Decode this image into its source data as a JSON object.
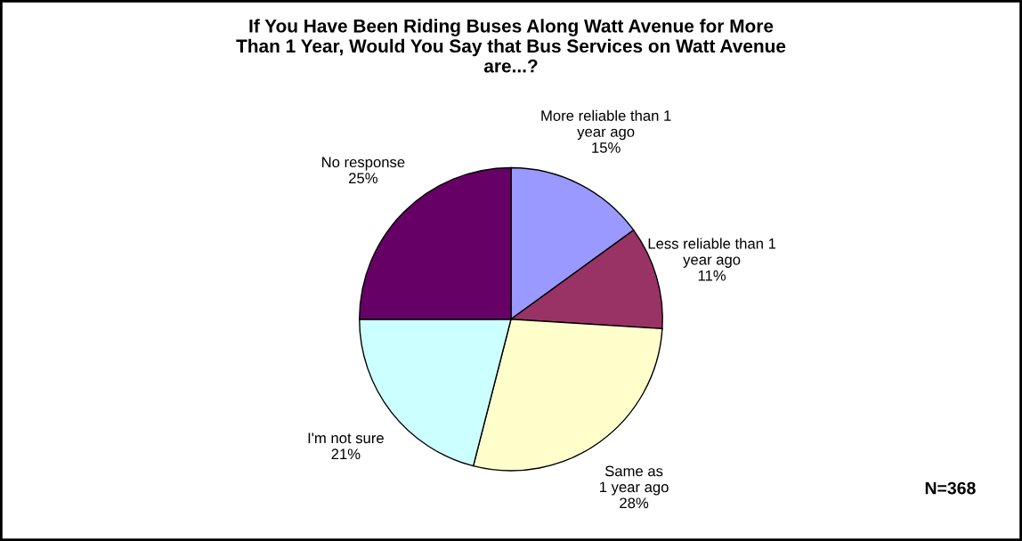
{
  "chart_data": {
    "type": "pie",
    "title": "If You Have Been Riding Buses Along Watt Avenue for More\nThan 1 Year, Would You Say that Bus Services on Watt Avenue\nare...?",
    "categories": [
      "More reliable than 1\nyear ago",
      "Less reliable than 1\nyear ago",
      "Same as\n1 year ago",
      "I'm not sure",
      "No response"
    ],
    "values": [
      15,
      11,
      28,
      21,
      25
    ],
    "value_labels": [
      "15%",
      "11%",
      "28%",
      "21%",
      "25%"
    ],
    "colors": [
      "#9999ff",
      "#993366",
      "#ffffcc",
      "#ccffff",
      "#660066"
    ],
    "annotations": [
      "N=368"
    ]
  }
}
